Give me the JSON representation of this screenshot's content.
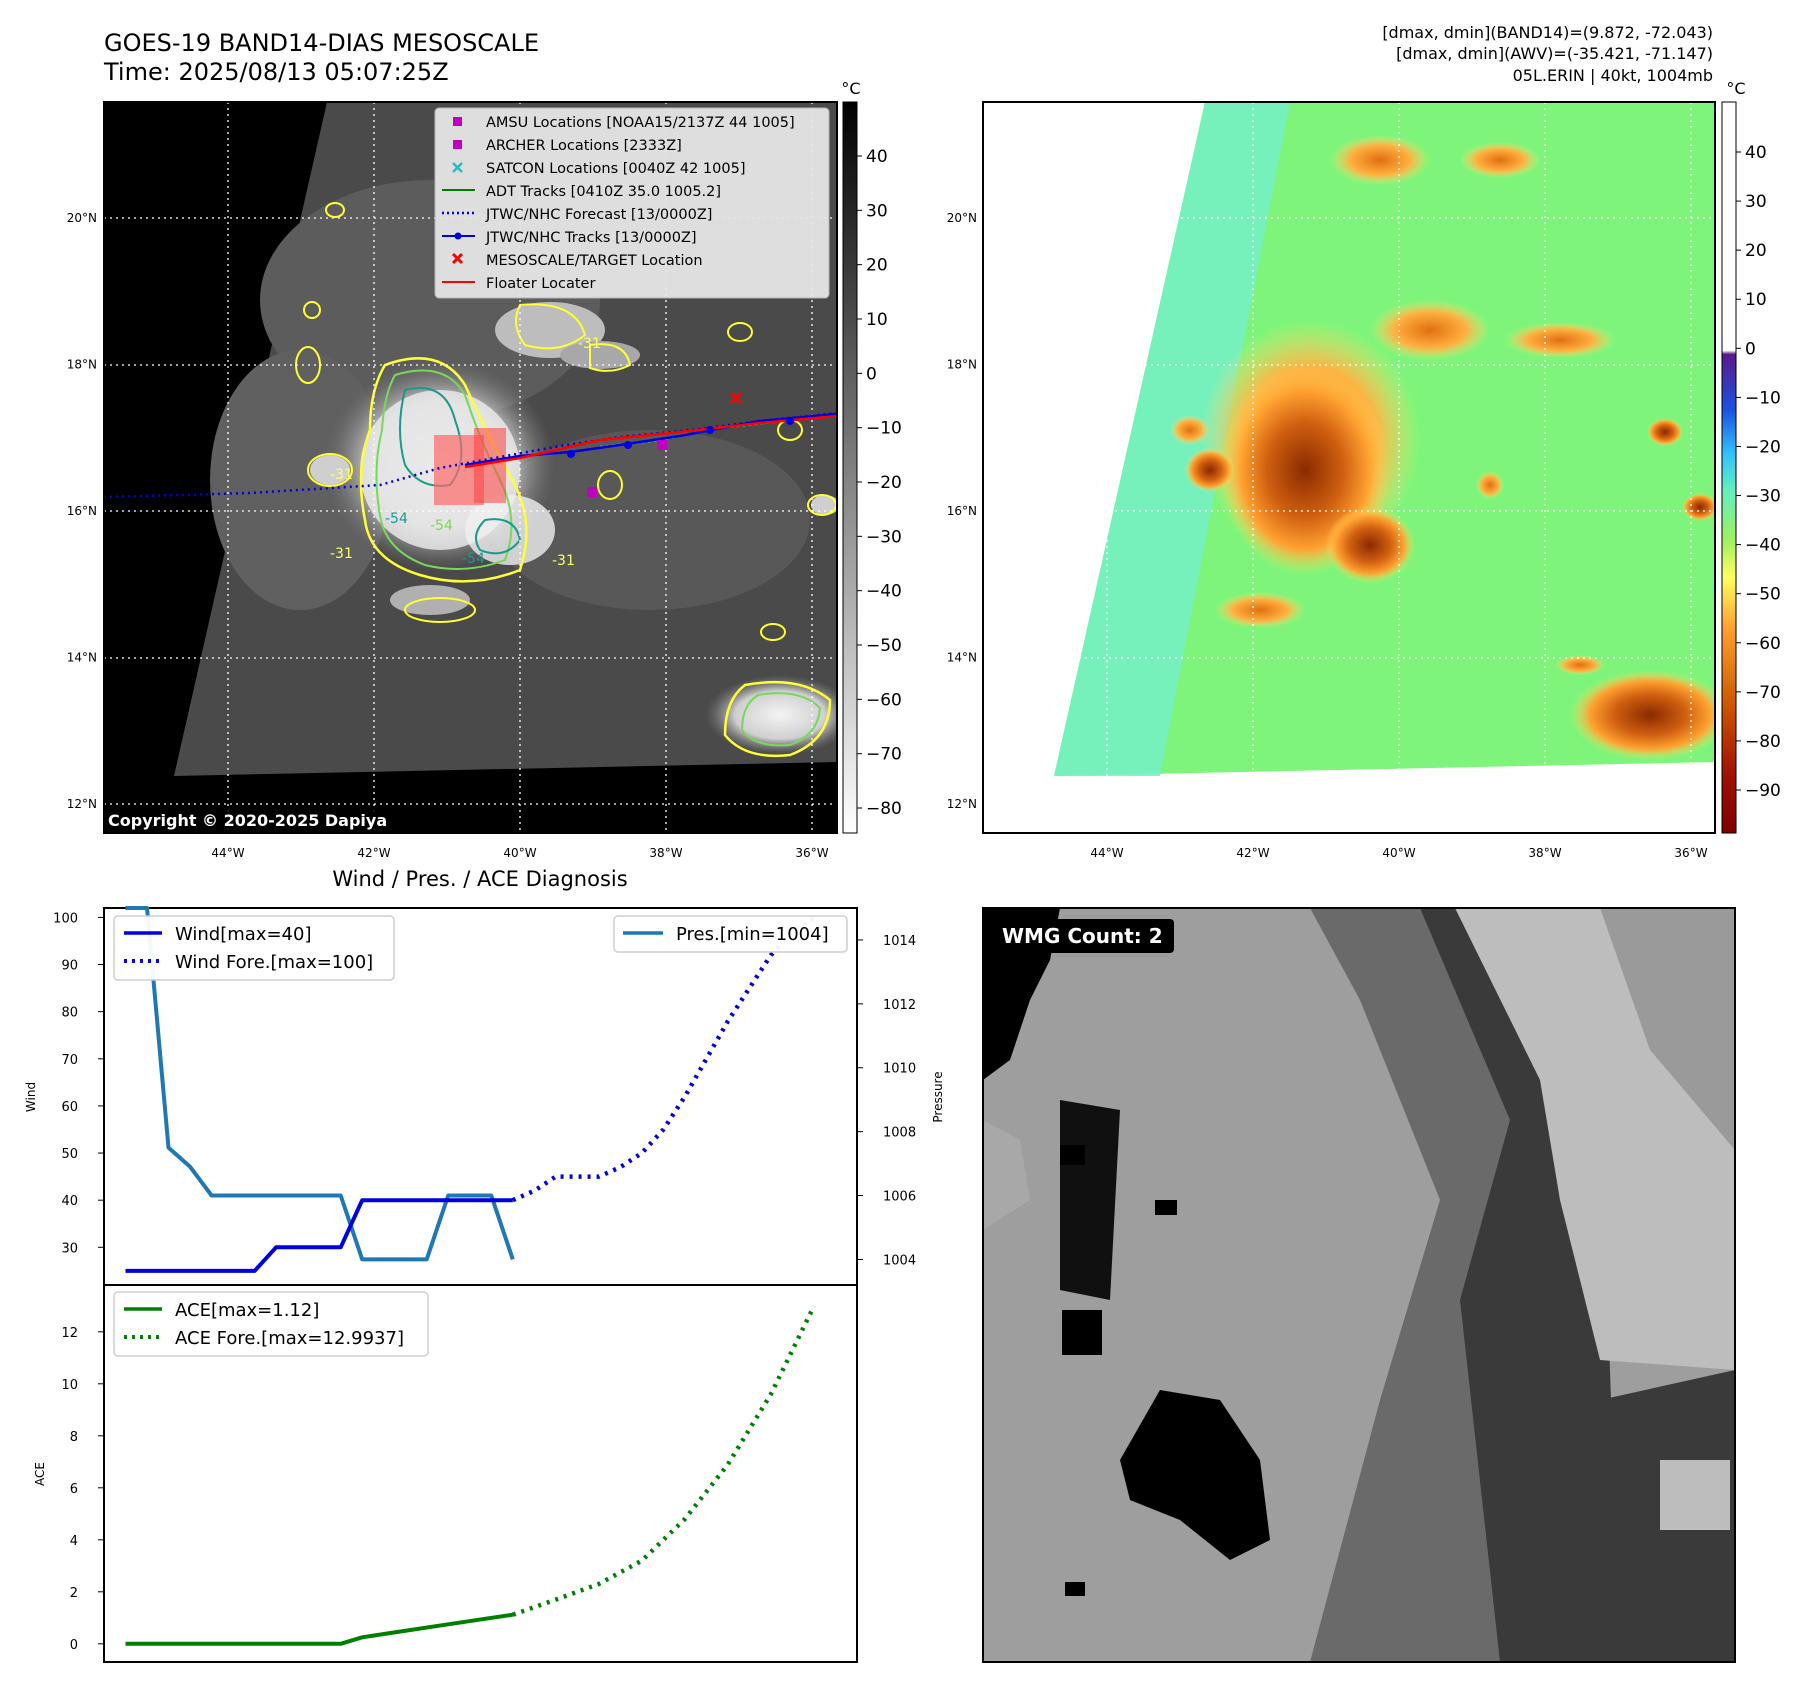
{
  "header": {
    "title": "GOES-19 BAND14-DIAS MESOSCALE",
    "time": "Time: 2025/08/13 05:07:25Z",
    "stats_band14": "[dmax, dmin](BAND14)=(9.872, -72.043)",
    "stats_awv": "[dmax, dmin](AWV)=(-35.421, -71.147)",
    "storm": "05L.ERIN | 40kt, 1004mb"
  },
  "map_axes": {
    "lon_labels": [
      "44°W",
      "42°W",
      "40°W",
      "38°W",
      "36°W"
    ],
    "lat_labels": [
      "20°N",
      "18°N",
      "16°N",
      "14°N",
      "12°N"
    ],
    "lon_values": [
      -44,
      -42,
      -40,
      -38,
      -36
    ],
    "lat_values": [
      20,
      18,
      16,
      14,
      12
    ]
  },
  "ir_panel": {
    "unit": "°C",
    "colorbar_ticks": [
      "40",
      "30",
      "20",
      "10",
      "0",
      "−10",
      "−20",
      "−30",
      "−40",
      "−50",
      "−60",
      "−70",
      "−80"
    ],
    "copyright": "Copyright © 2020-2025 Dapiya",
    "contour_labels": [
      "-31",
      "-31",
      "-31",
      "-54",
      "-54",
      "-54",
      "-31"
    ],
    "legend": [
      {
        "label": "AMSU Locations [NOAA15/2137Z 44 1005]",
        "color": "#c000c0",
        "marker": "square"
      },
      {
        "label": "ARCHER Locations [2333Z]",
        "color": "#c000c0",
        "marker": "square"
      },
      {
        "label": "SATCON Locations [0040Z 42 1005]",
        "color": "#20c0c0",
        "marker": "x"
      },
      {
        "label": "ADT Tracks [0410Z 35.0 1005.2]",
        "color": "#008000",
        "marker": "line"
      },
      {
        "label": "JTWC/NHC Forecast [13/0000Z]",
        "color": "#0000e0",
        "marker": "dotted"
      },
      {
        "label": "JTWC/NHC Tracks [13/0000Z]",
        "color": "#0000e0",
        "marker": "line-dot"
      },
      {
        "label": "MESOSCALE/TARGET Location",
        "color": "#ff0000",
        "marker": "x"
      },
      {
        "label": "Floater Locater",
        "color": "#ff0000",
        "marker": "line"
      }
    ]
  },
  "enhanced_panel": {
    "unit": "°C",
    "colorbar_ticks": [
      "40",
      "30",
      "20",
      "10",
      "0",
      "−10",
      "−20",
      "−30",
      "−40",
      "−50",
      "−60",
      "−70",
      "−80",
      "−90"
    ]
  },
  "diagnosis": {
    "title": "Wind / Pres. / ACE Diagnosis",
    "wind_ylabel": "Wind",
    "pres_ylabel": "Pressure",
    "ace_ylabel": "ACE",
    "wind_ticks": [
      "100",
      "90",
      "80",
      "70",
      "60",
      "50",
      "40",
      "30"
    ],
    "pres_ticks": [
      "1014",
      "1012",
      "1010",
      "1008",
      "1006",
      "1004"
    ],
    "ace_ticks": [
      "12",
      "10",
      "8",
      "6",
      "4",
      "2",
      "0"
    ],
    "legend_wind": "Wind[max=40]",
    "legend_wind_fore": "Wind Fore.[max=100]",
    "legend_pres": "Pres.[min=1004]",
    "legend_ace": "ACE[max=1.12]",
    "legend_ace_fore": "ACE Fore.[max=12.9937]"
  },
  "wmg": {
    "label": "WMG Count: 2"
  },
  "chart_data": [
    {
      "type": "line",
      "title": "Wind / Pres. / ACE Diagnosis",
      "ylabel": "Wind",
      "ylim": [
        22,
        102
      ],
      "y2label": "Pressure",
      "y2lim": [
        1003.2,
        1015.0
      ],
      "series": [
        {
          "name": "Wind[max=40]",
          "axis": "left",
          "color": "#0000e0",
          "style": "solid",
          "x": [
            0,
            1,
            2,
            3,
            4,
            5,
            6,
            7,
            8,
            9,
            10,
            11,
            12,
            13,
            14,
            15,
            16,
            17,
            18
          ],
          "y": [
            25,
            25,
            25,
            25,
            25,
            25,
            25,
            30,
            30,
            30,
            30,
            40,
            40,
            40,
            40,
            40,
            40,
            40,
            40
          ]
        },
        {
          "name": "Wind Fore.[max=100]",
          "axis": "left",
          "color": "#0000e0",
          "style": "dotted",
          "x": [
            18,
            19,
            20,
            21,
            22,
            23,
            24,
            25,
            26,
            27,
            28,
            29,
            30,
            31,
            32
          ],
          "y": [
            40,
            42,
            45,
            45,
            45,
            47,
            50,
            55,
            62,
            70,
            78,
            85,
            92,
            97,
            100
          ]
        },
        {
          "name": "Pres.[min=1004]",
          "axis": "right",
          "color": "#1f77b4",
          "style": "solid",
          "x": [
            0,
            1,
            2,
            3,
            4,
            5,
            6,
            7,
            8,
            9,
            10,
            11,
            12,
            13,
            14,
            15,
            16,
            17,
            18
          ],
          "y": [
            1015,
            1015,
            1007.5,
            1006.9,
            1006,
            1006,
            1006,
            1006,
            1006,
            1006,
            1006,
            1004,
            1004,
            1004,
            1004,
            1006,
            1006,
            1006,
            1004
          ]
        }
      ]
    },
    {
      "type": "line",
      "ylabel": "ACE",
      "ylim": [
        -0.7,
        13.8
      ],
      "series": [
        {
          "name": "ACE[max=1.12]",
          "color": "#008000",
          "style": "solid",
          "x": [
            0,
            5,
            10,
            11,
            15,
            18
          ],
          "y": [
            0,
            0,
            0,
            0.25,
            0.75,
            1.12
          ]
        },
        {
          "name": "ACE Fore.[max=12.9937]",
          "color": "#008000",
          "style": "dotted",
          "x": [
            18,
            20,
            22,
            24,
            26,
            28,
            30,
            32
          ],
          "y": [
            1.12,
            1.7,
            2.3,
            3.2,
            4.8,
            6.9,
            9.6,
            12.9937
          ]
        }
      ]
    }
  ]
}
